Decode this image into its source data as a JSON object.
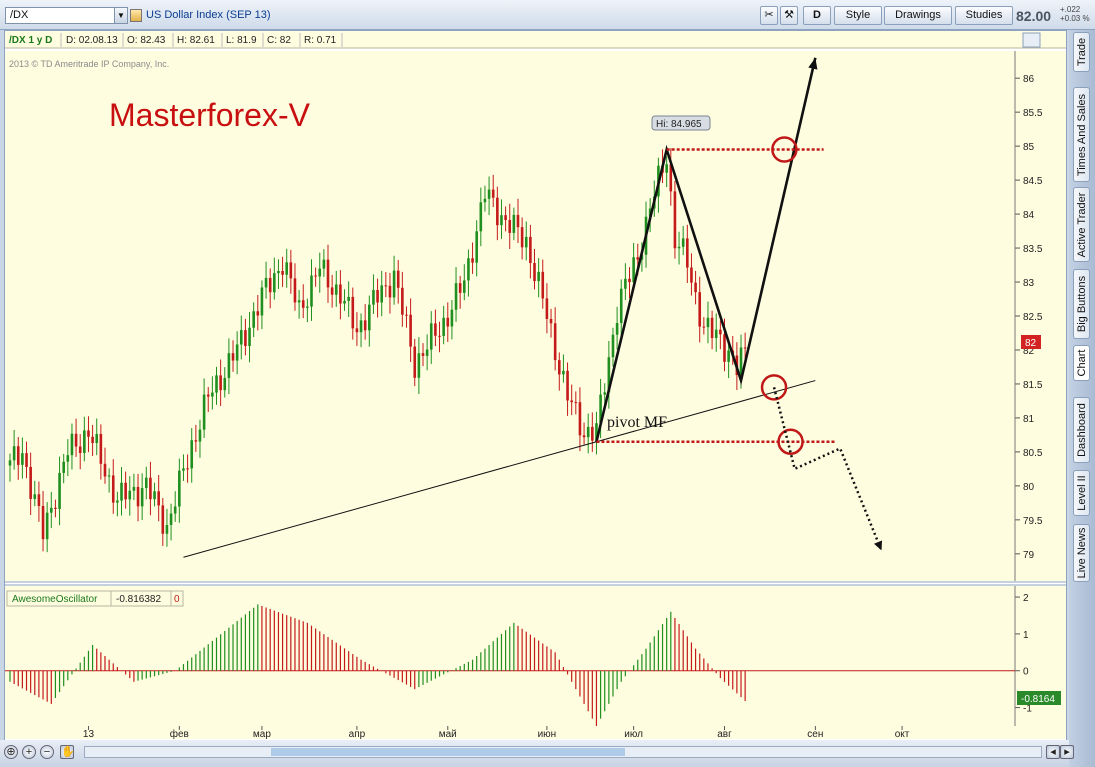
{
  "toolbar": {
    "symbol": "/DX",
    "description": "US Dollar Index (SEP 13)",
    "buttons": {
      "d": "D",
      "style": "Style",
      "drawings": "Drawings",
      "studies": "Studies"
    },
    "last_price": "82.00",
    "change_abs": "+.022",
    "change_pct": "+0.03 %"
  },
  "info_bar": {
    "symbol_period": "/DX 1 y D",
    "date": "D: 02.08.13",
    "open": "O: 82.43",
    "high": "H: 82.61",
    "low": "L: 81.9",
    "close": "C: 82",
    "range": "R: 0.71"
  },
  "copyright": "2013 © TD Ameritrade IP Company, Inc.",
  "watermark": "Masterforex-V",
  "annotations": {
    "hi_label": "Hi: 84.965",
    "pivot_label": "pivot MF",
    "current_price_tag": "82"
  },
  "oscillator": {
    "name": "AwesomeOscillator",
    "value": "-0.816382",
    "zero": "0",
    "value_tag": "-0.8164"
  },
  "sidebar_tabs": [
    "Trade",
    "Times And Sales",
    "Active Trader",
    "Big Buttons",
    "Chart",
    "Dashboard",
    "Level II",
    "Live News"
  ],
  "colors": {
    "up": "#1f8f1f",
    "down": "#c41a1a",
    "chart_bg": "#fffde0",
    "annotation_red": "#c01818",
    "price_tag": "#d32222",
    "osc_tag": "#2a8a2a"
  },
  "chart_data": {
    "type": "candlestick",
    "price_axis": {
      "ticks": [
        "86",
        "85.5",
        "85",
        "84.5",
        "84",
        "83.5",
        "83",
        "82.5",
        "82",
        "81.5",
        "81",
        "80.5",
        "80",
        "79.5",
        "79"
      ],
      "ylim": [
        78.6,
        86.4
      ]
    },
    "osc_axis": {
      "ticks": [
        "2",
        "1",
        "0",
        "-1"
      ],
      "ylim": [
        -1.5,
        2.3
      ]
    },
    "x_axis": {
      "labels": [
        "13",
        "фев",
        "мар",
        "апр",
        "май",
        "июн",
        "июл",
        "авг",
        "сен",
        "окт"
      ]
    },
    "price_anchors": [
      {
        "d": 0,
        "p": 80.3
      },
      {
        "d": 3,
        "p": 80.5
      },
      {
        "d": 8,
        "p": 79.3
      },
      {
        "d": 14,
        "p": 80.5
      },
      {
        "d": 19,
        "p": 80.8
      },
      {
        "d": 26,
        "p": 79.8
      },
      {
        "d": 33,
        "p": 80.0
      },
      {
        "d": 38,
        "p": 79.4
      },
      {
        "d": 44,
        "p": 80.6
      },
      {
        "d": 48,
        "p": 81.3
      },
      {
        "d": 55,
        "p": 82.0
      },
      {
        "d": 62,
        "p": 82.9
      },
      {
        "d": 66,
        "p": 83.3
      },
      {
        "d": 70,
        "p": 82.6
      },
      {
        "d": 75,
        "p": 83.2
      },
      {
        "d": 80,
        "p": 82.8
      },
      {
        "d": 84,
        "p": 82.3
      },
      {
        "d": 88,
        "p": 82.7
      },
      {
        "d": 93,
        "p": 83.1
      },
      {
        "d": 98,
        "p": 81.8
      },
      {
        "d": 105,
        "p": 82.4
      },
      {
        "d": 110,
        "p": 83.0
      },
      {
        "d": 115,
        "p": 84.3
      },
      {
        "d": 120,
        "p": 83.9
      },
      {
        "d": 125,
        "p": 83.6
      },
      {
        "d": 130,
        "p": 82.5
      },
      {
        "d": 135,
        "p": 81.3
      },
      {
        "d": 139,
        "p": 80.8
      },
      {
        "d": 142,
        "p": 80.8
      },
      {
        "d": 147,
        "p": 82.6
      },
      {
        "d": 152,
        "p": 83.4
      },
      {
        "d": 157,
        "p": 84.5
      },
      {
        "d": 159,
        "p": 84.9
      },
      {
        "d": 161,
        "p": 83.6
      },
      {
        "d": 164,
        "p": 83.3
      },
      {
        "d": 168,
        "p": 82.3
      },
      {
        "d": 172,
        "p": 82.2
      },
      {
        "d": 176,
        "p": 81.7
      },
      {
        "d": 178,
        "p": 82.0
      }
    ],
    "osc_anchors": [
      {
        "d": 0,
        "v": -0.3
      },
      {
        "d": 10,
        "v": -0.9
      },
      {
        "d": 20,
        "v": 0.7
      },
      {
        "d": 30,
        "v": -0.3
      },
      {
        "d": 40,
        "v": 0.0
      },
      {
        "d": 60,
        "v": 1.8
      },
      {
        "d": 72,
        "v": 1.3
      },
      {
        "d": 85,
        "v": 0.3
      },
      {
        "d": 98,
        "v": -0.5
      },
      {
        "d": 112,
        "v": 0.3
      },
      {
        "d": 122,
        "v": 1.3
      },
      {
        "d": 132,
        "v": 0.5
      },
      {
        "d": 142,
        "v": -1.5
      },
      {
        "d": 148,
        "v": -0.3
      },
      {
        "d": 154,
        "v": 0.6
      },
      {
        "d": 160,
        "v": 1.6
      },
      {
        "d": 166,
        "v": 0.6
      },
      {
        "d": 172,
        "v": -0.2
      },
      {
        "d": 178,
        "v": -0.82
      }
    ],
    "overlays": {
      "trendline": [
        {
          "d": 42,
          "p": 78.95
        },
        {
          "d": 195,
          "p": 81.55
        }
      ],
      "zigzag": [
        {
          "d": 142,
          "p": 80.65
        },
        {
          "d": 159,
          "p": 84.95
        },
        {
          "d": 177,
          "p": 81.55
        },
        {
          "d": 195,
          "p": 86.3
        }
      ],
      "resistance_level": 84.95,
      "pivot_level": 80.65
    }
  }
}
